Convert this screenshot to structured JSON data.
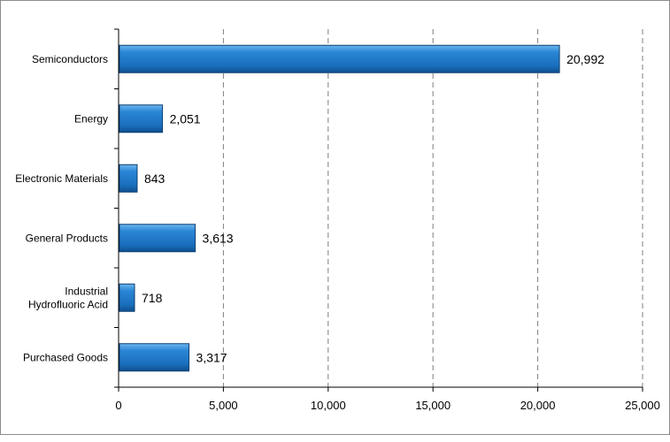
{
  "chart_data": {
    "type": "bar",
    "orientation": "horizontal",
    "title": "",
    "xlabel": "",
    "ylabel": "",
    "categories": [
      [
        "Semiconductors"
      ],
      [
        "Energy"
      ],
      [
        "Electronic Materials"
      ],
      [
        "General Products"
      ],
      [
        "Industrial",
        "Hydrofluoric Acid"
      ],
      [
        "Purchased Goods"
      ]
    ],
    "values": [
      20992,
      2051,
      843,
      3613,
      718,
      3317
    ],
    "value_labels": [
      "20,992",
      "2,051",
      "843",
      "3,613",
      "718",
      "3,317"
    ],
    "xlim": [
      0,
      25000
    ],
    "x_ticks": [
      0,
      5000,
      10000,
      15000,
      20000,
      25000
    ],
    "x_tick_labels": [
      "0",
      "5,000",
      "10,000",
      "15,000",
      "20,000",
      "25,000"
    ],
    "grid": "vertical dashed",
    "legend": "none",
    "colors": {
      "bar_fill": "#1f77c8",
      "bar_top": "#5aa9e8",
      "bar_border": "#0d3f70",
      "grid": "#7f7f7f",
      "axis": "#000000"
    }
  }
}
